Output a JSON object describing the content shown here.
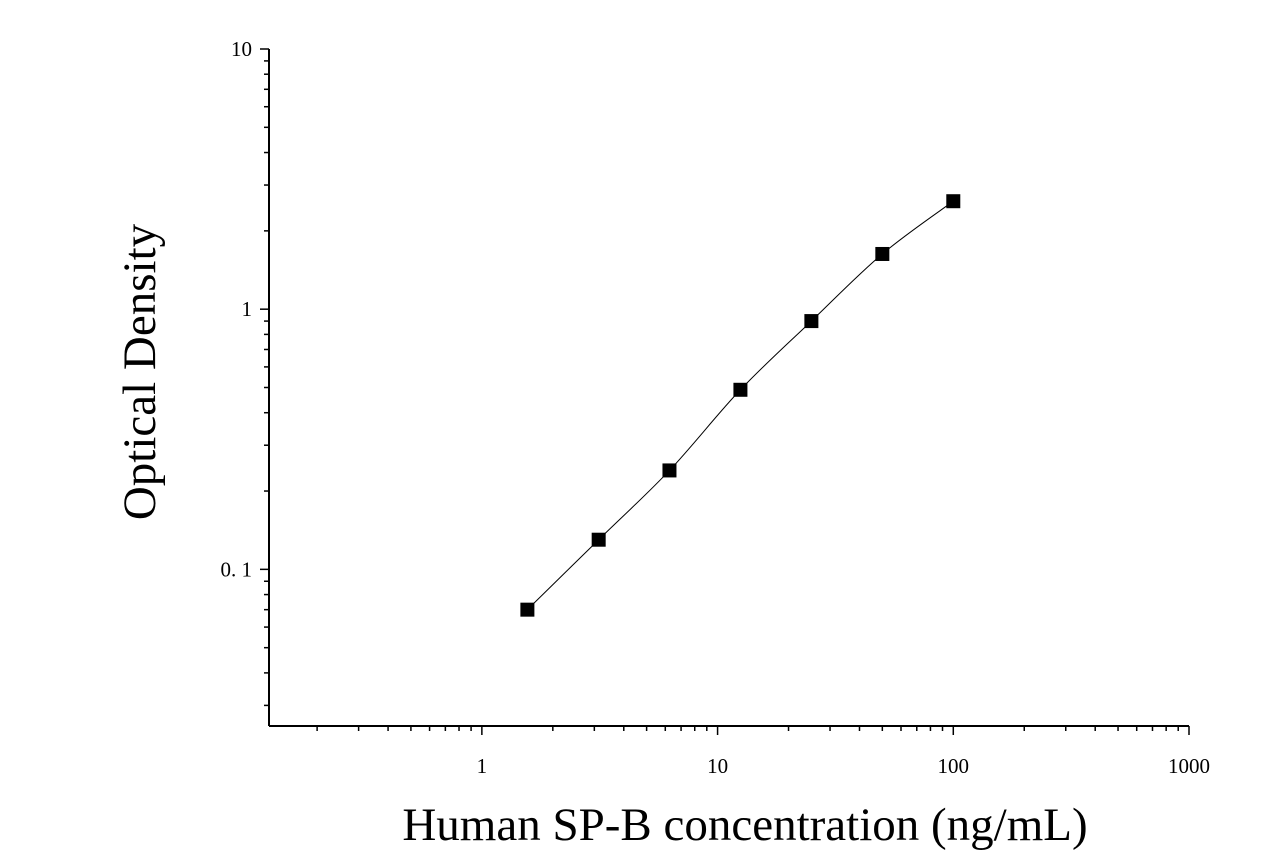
{
  "chart_data": {
    "type": "scatter",
    "xlabel": "Human SP-B concentration (ng/mL)",
    "ylabel": "Optical Density",
    "xscale": "log",
    "yscale": "log",
    "xlim": [
      0.125,
      1000
    ],
    "ylim": [
      0.025,
      10
    ],
    "x_ticks": [
      {
        "value": 1,
        "label": "1"
      },
      {
        "value": 10,
        "label": "10"
      },
      {
        "value": 100,
        "label": "100"
      },
      {
        "value": 1000,
        "label": "1000"
      }
    ],
    "y_ticks": [
      {
        "value": 0.1,
        "label": "0. 1"
      },
      {
        "value": 1,
        "label": "1"
      },
      {
        "value": 10,
        "label": "10"
      }
    ],
    "grid": false,
    "legend": false,
    "marker": "square",
    "marker_color": "#000000",
    "line_color": "#000000",
    "series": [
      {
        "x": [
          1.56,
          3.13,
          6.25,
          12.5,
          25,
          50,
          100
        ],
        "y": [
          0.07,
          0.13,
          0.24,
          0.49,
          0.9,
          1.63,
          2.6
        ],
        "fit": "smooth-curve"
      }
    ]
  }
}
